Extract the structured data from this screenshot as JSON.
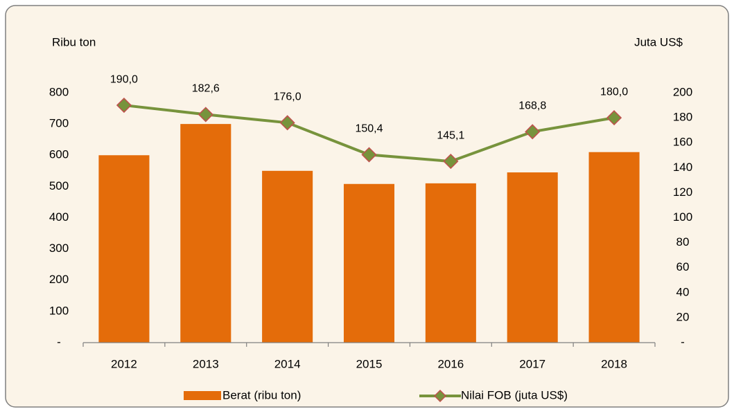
{
  "chart_data": {
    "type": "bar",
    "y_label": "Ribu ton",
    "y2_label": "Juta US$",
    "categories": [
      "2012",
      "2013",
      "2014",
      "2015",
      "2016",
      "2017",
      "2018"
    ],
    "series": [
      {
        "name": "Berat (ribu ton)",
        "type": "bar",
        "axis": "y",
        "color": "#e46c0a",
        "values": [
          600,
          700,
          550,
          508,
          510,
          545,
          610
        ]
      },
      {
        "name": "Nilai FOB (juta US$)",
        "type": "line",
        "axis": "y2",
        "color": "#77933c",
        "marker_color": "#c0504d",
        "values": [
          190.0,
          182.6,
          176.0,
          150.4,
          145.1,
          168.8,
          180.0
        ],
        "value_labels": [
          "190,0",
          "182,6",
          "176,0",
          "150,4",
          "145,1",
          "168,8",
          "180,0"
        ]
      }
    ],
    "ylim": [
      0,
      800
    ],
    "yticks": [
      {
        "value": 0,
        "label": "-"
      },
      100,
      200,
      300,
      400,
      500,
      600,
      700,
      800
    ],
    "y2lim": [
      0,
      200
    ],
    "y2ticks": [
      {
        "value": 0,
        "label": "-"
      },
      20,
      40,
      60,
      80,
      100,
      120,
      140,
      160,
      180,
      200
    ],
    "legend": "bottom"
  }
}
